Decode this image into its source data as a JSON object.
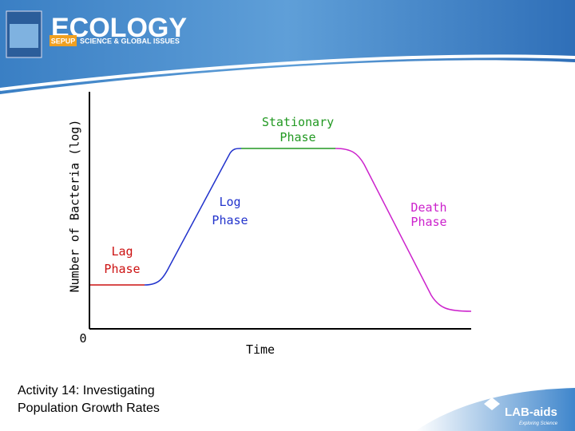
{
  "header": {
    "title": "ECOLOGY",
    "brand": "SEPUP",
    "subtitle": "SCIENCE & GLOBAL ISSUES"
  },
  "diagram": {
    "y_axis_label": "Number of Bacteria (log)",
    "origin_label": "0",
    "x_axis_label": "Time",
    "phases": {
      "stationary": [
        "Stationary",
        "Phase"
      ],
      "log": [
        "Log",
        "Phase"
      ],
      "lag": [
        "Lag",
        "Phase"
      ],
      "death": [
        "Death",
        "Phase"
      ]
    }
  },
  "caption": [
    "Activity 14: Investigating",
    "Population Growth Rates"
  ],
  "logo": {
    "name": "LAB-aids",
    "tagline": "Exploring Science"
  }
}
